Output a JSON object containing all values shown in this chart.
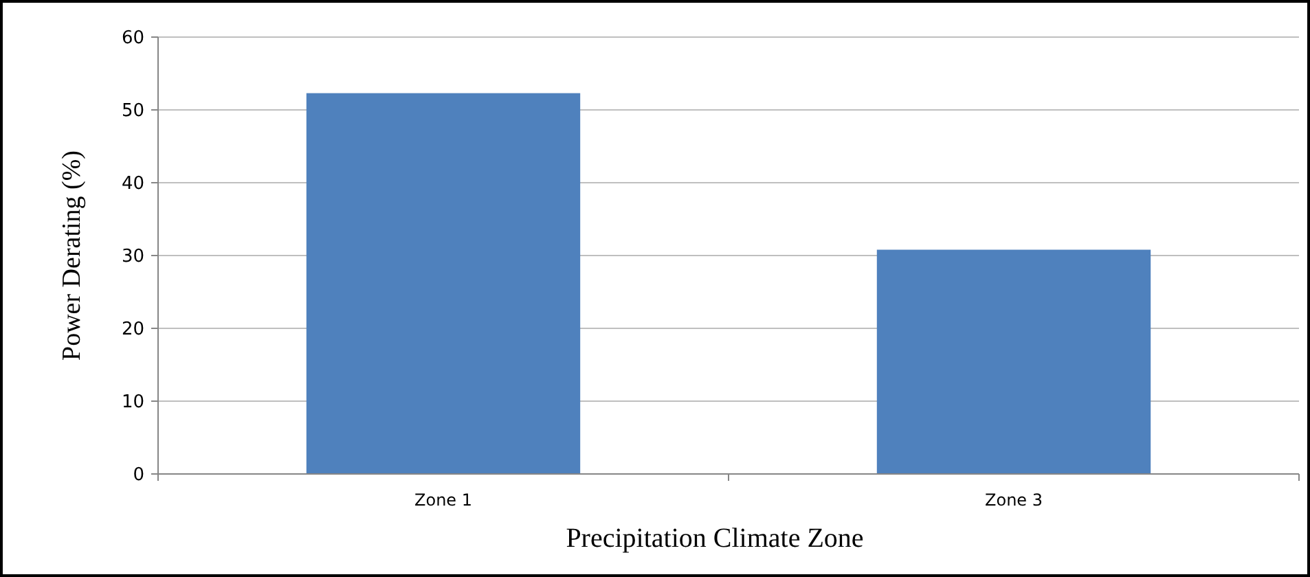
{
  "chart_data": {
    "type": "bar",
    "xlabel": "Precipitation Climate Zone",
    "ylabel": "Power Derating (%)",
    "categories": [
      "Zone 1",
      "Zone 3"
    ],
    "values": [
      52.3,
      30.8
    ],
    "color": "#4f81bd",
    "ylim": [
      0,
      60
    ],
    "yticks": [
      0,
      10,
      20,
      30,
      40,
      50,
      60
    ],
    "grid": "y"
  }
}
